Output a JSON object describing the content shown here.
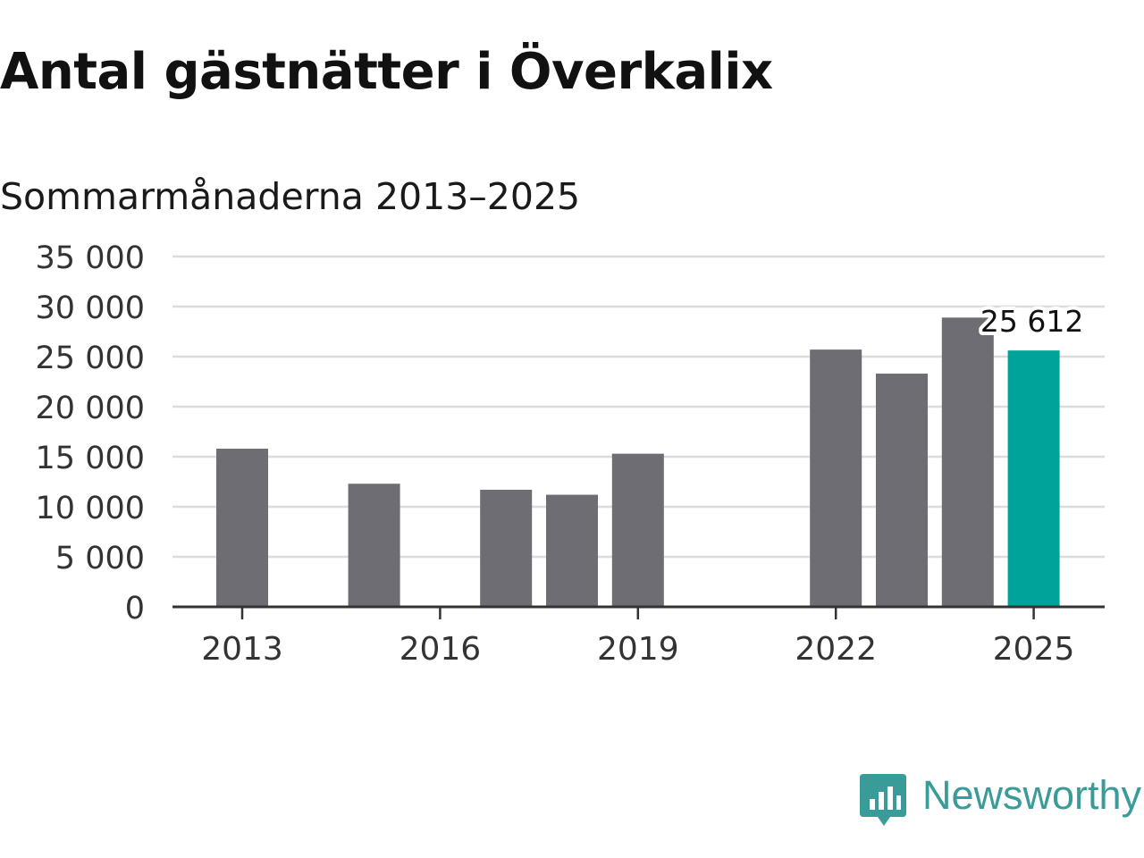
{
  "title": "Antal gästnätter i Överkalix",
  "subtitle": "Sommarmånaderna 2013–2025",
  "brand": {
    "name": "Newsworthy",
    "color": "#3a9c98"
  },
  "colors": {
    "bar": "#6e6d73",
    "highlight": "#00a39a",
    "grid": "#dcdcdc",
    "axis": "#333333"
  },
  "chart_data": {
    "type": "bar",
    "categories": [
      "2013",
      "2014",
      "2015",
      "2016",
      "2017",
      "2018",
      "2019",
      "2020",
      "2021",
      "2022",
      "2023",
      "2024",
      "2025"
    ],
    "values": [
      15800,
      null,
      12300,
      null,
      11700,
      11200,
      15300,
      null,
      null,
      25700,
      23300,
      28900,
      25612
    ],
    "highlight_index": 12,
    "data_labels": [
      {
        "index": 12,
        "text": "25 612"
      }
    ],
    "xticks": [
      "2013",
      "2016",
      "2019",
      "2022",
      "2025"
    ],
    "yticks": [
      "0",
      "5 000",
      "10 000",
      "15 000",
      "20 000",
      "25 000",
      "30 000",
      "35 000"
    ],
    "ytick_values": [
      0,
      5000,
      10000,
      15000,
      20000,
      25000,
      30000,
      35000
    ],
    "ylim": [
      0,
      35000
    ],
    "xlabel": "",
    "ylabel": "",
    "grid": true
  }
}
